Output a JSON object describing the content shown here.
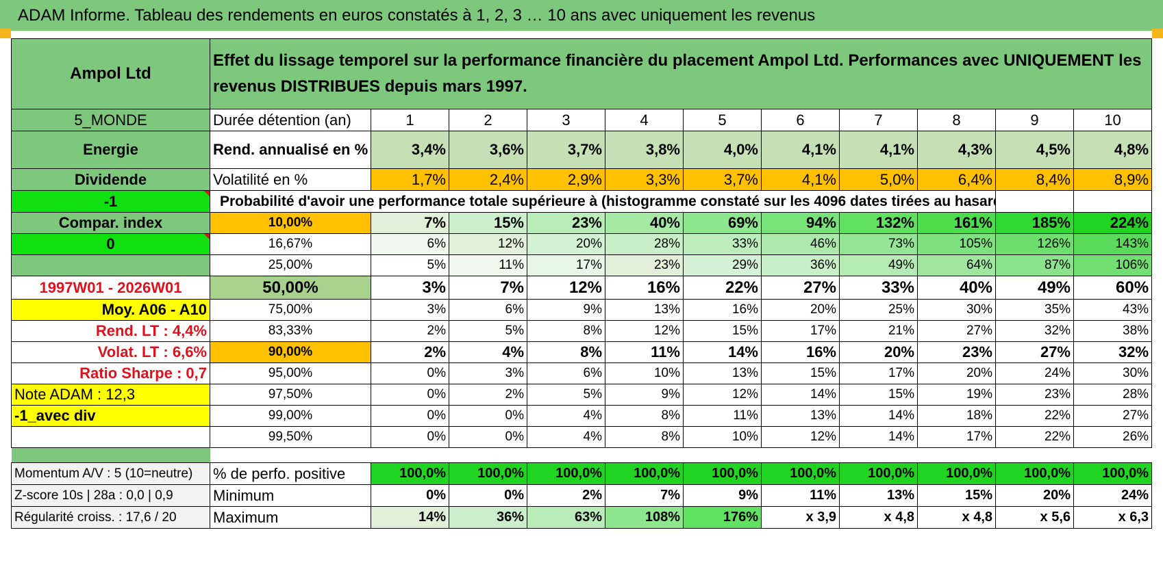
{
  "title": "ADAM Informe. Tableau des rendements en euros constatés à 1, 2, 3 … 10 ans avec uniquement les revenus",
  "header": {
    "company": "Ampol Ltd",
    "description": "Effet du lissage temporel sur la performance financière du placement Ampol Ltd. Performances avec UNIQUEMENT les revenus DISTRIBUES depuis mars 1997."
  },
  "left": {
    "region": "5_MONDE",
    "sector": "Energie",
    "type": "Dividende",
    "minus_one": "-1",
    "compar_index": "Compar. index",
    "zero": "0",
    "period": "1997W01 - 2026W01",
    "moy": "Moy. A06 - A10",
    "rend_lt": "Rend. LT :    4,4%",
    "volat_lt": "Volat. LT :    6,6%",
    "sharpe": "Ratio Sharpe :     0,7",
    "note": "Note ADAM : 12,3",
    "avec_div": "-1_avec div"
  },
  "durations_label": "Durée détention (an)",
  "durations": [
    "1",
    "2",
    "3",
    "4",
    "5",
    "6",
    "7",
    "8",
    "9",
    "10"
  ],
  "rend_label": "Rend. annualisé en %",
  "rend": [
    "3,4%",
    "3,6%",
    "3,7%",
    "3,8%",
    "4,0%",
    "4,1%",
    "4,1%",
    "4,3%",
    "4,5%",
    "4,8%"
  ],
  "vol_label": "Volatilité en %",
  "vol": [
    "1,7%",
    "2,4%",
    "2,9%",
    "3,3%",
    "3,7%",
    "4,1%",
    "5,0%",
    "6,4%",
    "8,4%",
    "8,9%"
  ],
  "prob_title": "Probabilité d'avoir une performance totale supérieure à (histogramme constaté sur les 4096 dates tirées au hasard)",
  "prob_rows": [
    {
      "p": "10,00%",
      "v": [
        "7%",
        "15%",
        "23%",
        "40%",
        "69%",
        "94%",
        "132%",
        "161%",
        "185%",
        "224%"
      ]
    },
    {
      "p": "16,67%",
      "v": [
        "6%",
        "12%",
        "20%",
        "28%",
        "33%",
        "46%",
        "73%",
        "105%",
        "126%",
        "143%"
      ]
    },
    {
      "p": "25,00%",
      "v": [
        "5%",
        "11%",
        "17%",
        "23%",
        "29%",
        "36%",
        "49%",
        "64%",
        "87%",
        "106%"
      ]
    },
    {
      "p": "50,00%",
      "v": [
        "3%",
        "7%",
        "12%",
        "16%",
        "22%",
        "27%",
        "33%",
        "40%",
        "49%",
        "60%"
      ]
    },
    {
      "p": "75,00%",
      "v": [
        "3%",
        "6%",
        "9%",
        "13%",
        "16%",
        "20%",
        "25%",
        "30%",
        "35%",
        "43%"
      ]
    },
    {
      "p": "83,33%",
      "v": [
        "2%",
        "5%",
        "8%",
        "12%",
        "15%",
        "17%",
        "21%",
        "27%",
        "32%",
        "38%"
      ]
    },
    {
      "p": "90,00%",
      "v": [
        "2%",
        "4%",
        "8%",
        "11%",
        "14%",
        "16%",
        "20%",
        "23%",
        "27%",
        "32%"
      ]
    },
    {
      "p": "95,00%",
      "v": [
        "0%",
        "3%",
        "6%",
        "10%",
        "13%",
        "15%",
        "17%",
        "20%",
        "24%",
        "30%"
      ]
    },
    {
      "p": "97,50%",
      "v": [
        "0%",
        "2%",
        "5%",
        "9%",
        "12%",
        "14%",
        "15%",
        "19%",
        "23%",
        "28%"
      ]
    },
    {
      "p": "99,00%",
      "v": [
        "0%",
        "0%",
        "4%",
        "8%",
        "11%",
        "13%",
        "14%",
        "18%",
        "22%",
        "27%"
      ]
    },
    {
      "p": "99,50%",
      "v": [
        "0%",
        "0%",
        "4%",
        "8%",
        "10%",
        "12%",
        "14%",
        "17%",
        "22%",
        "26%"
      ]
    }
  ],
  "bottom": {
    "momentum": "Momentum A/V : 5 (10=neutre)",
    "zscore": "Z-score 10s | 28a : 0,0 | 0,9",
    "regularite": "Régularité croiss. : 17,6 / 20",
    "pos_label": "% de perfo. positive",
    "pos": [
      "100,0%",
      "100,0%",
      "100,0%",
      "100,0%",
      "100,0%",
      "100,0%",
      "100,0%",
      "100,0%",
      "100,0%",
      "100,0%"
    ],
    "min_label": "Minimum",
    "min": [
      "0%",
      "0%",
      "2%",
      "7%",
      "9%",
      "11%",
      "13%",
      "15%",
      "20%",
      "24%"
    ],
    "max_label": "Maximum",
    "max": [
      "14%",
      "36%",
      "63%",
      "108%",
      "176%",
      "x 3,9",
      "x 4,8",
      "x 4,8",
      "x 5,6",
      "x 6,3"
    ]
  },
  "colors": {
    "header_green": "#7ec87e",
    "orange": "#ffc000",
    "yellow": "#ffff00",
    "bright_green": "#10e010",
    "red_text": "#e0101c"
  }
}
